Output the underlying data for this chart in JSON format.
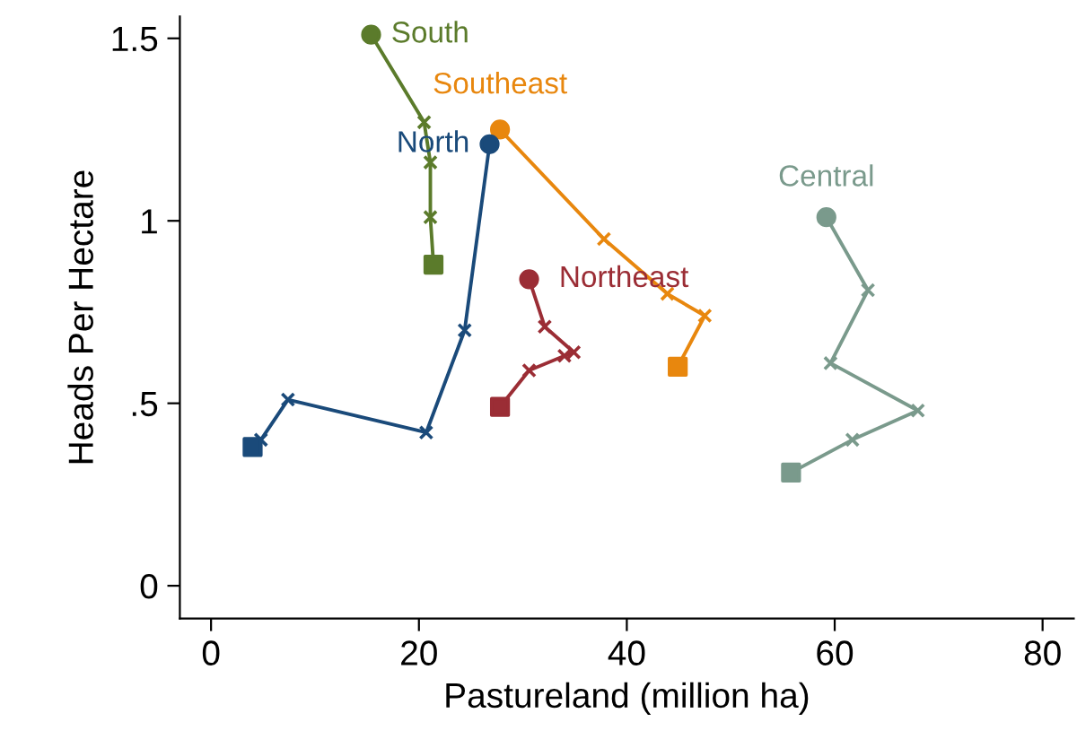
{
  "chart_data": {
    "type": "line",
    "xlabel": "Pastureland (million ha)",
    "ylabel": "Heads Per Hectare",
    "xlim": [
      -3,
      83
    ],
    "ylim": [
      -0.09,
      1.56
    ],
    "xticks": [
      0,
      20,
      40,
      60,
      80
    ],
    "yticks": [
      {
        "value": 0,
        "label": "0"
      },
      {
        "value": 0.5,
        "label": ".5"
      },
      {
        "value": 1,
        "label": "1"
      },
      {
        "value": 1.5,
        "label": "1.5"
      }
    ],
    "grid": false,
    "legend": false,
    "series": [
      {
        "color": "#5b7b2b",
        "marker": "none",
        "x": [
          15.4,
          20.5,
          21.1,
          21.1,
          21.4
        ],
        "values": [
          1.51,
          1.27,
          1.16,
          1.01,
          0.88
        ]
      },
      {
        "type": "scatter",
        "color": "#5b7b2b",
        "marker": "cross",
        "x": [
          20.5,
          21.1,
          21.1
        ],
        "values": [
          1.27,
          1.16,
          1.01
        ]
      },
      {
        "type": "scatter",
        "color": "#5b7b2b",
        "marker": "circle",
        "x": [
          15.4
        ],
        "values": [
          1.51
        ]
      },
      {
        "type": "scatter",
        "color": "#5b7b2b",
        "marker": "square",
        "x": [
          21.4
        ],
        "values": [
          0.88
        ]
      },
      {
        "color": "#e8870e",
        "marker": "none",
        "x": [
          27.8,
          37.8,
          43.9,
          47.5,
          44.9
        ],
        "values": [
          1.25,
          0.95,
          0.8,
          0.74,
          0.6
        ]
      },
      {
        "type": "scatter",
        "color": "#e8870e",
        "marker": "cross",
        "x": [
          37.8,
          43.9,
          47.5
        ],
        "values": [
          0.95,
          0.8,
          0.74
        ]
      },
      {
        "type": "scatter",
        "color": "#e8870e",
        "marker": "circle",
        "x": [
          27.8
        ],
        "values": [
          1.25
        ]
      },
      {
        "type": "scatter",
        "color": "#e8870e",
        "marker": "square",
        "x": [
          44.9
        ],
        "values": [
          0.6
        ]
      },
      {
        "color": "#1a4a7a",
        "marker": "none",
        "x": [
          26.8,
          24.4,
          20.7,
          7.4,
          4.8,
          4.0
        ],
        "values": [
          1.21,
          0.7,
          0.42,
          0.51,
          0.4,
          0.38
        ]
      },
      {
        "type": "scatter",
        "color": "#1a4a7a",
        "marker": "cross",
        "x": [
          24.4,
          20.7,
          7.4,
          4.8
        ],
        "values": [
          0.7,
          0.42,
          0.51,
          0.4
        ]
      },
      {
        "type": "scatter",
        "color": "#1a4a7a",
        "marker": "circle",
        "x": [
          26.8
        ],
        "values": [
          1.21
        ]
      },
      {
        "type": "scatter",
        "color": "#1a4a7a",
        "marker": "square",
        "x": [
          4.0
        ],
        "values": [
          0.38
        ]
      },
      {
        "color": "#9b2d35",
        "marker": "none",
        "x": [
          30.6,
          32.1,
          34.9,
          34.0,
          30.6,
          27.8
        ],
        "values": [
          0.84,
          0.71,
          0.64,
          0.63,
          0.59,
          0.49
        ]
      },
      {
        "type": "scatter",
        "color": "#9b2d35",
        "marker": "cross",
        "x": [
          32.1,
          34.9,
          34.0,
          30.6
        ],
        "values": [
          0.71,
          0.64,
          0.63,
          0.59
        ]
      },
      {
        "type": "scatter",
        "color": "#9b2d35",
        "marker": "circle",
        "x": [
          30.6
        ],
        "values": [
          0.84
        ]
      },
      {
        "type": "scatter",
        "color": "#9b2d35",
        "marker": "square",
        "x": [
          27.8
        ],
        "values": [
          0.49
        ]
      },
      {
        "color": "#7a9a8c",
        "marker": "none",
        "x": [
          59.2,
          63.2,
          59.6,
          68.0,
          61.7,
          55.8
        ],
        "values": [
          1.01,
          0.81,
          0.61,
          0.48,
          0.4,
          0.31
        ]
      },
      {
        "type": "scatter",
        "color": "#7a9a8c",
        "marker": "cross",
        "x": [
          63.2,
          59.6,
          68.0,
          61.7
        ],
        "values": [
          0.81,
          0.61,
          0.48,
          0.4
        ]
      },
      {
        "type": "scatter",
        "color": "#7a9a8c",
        "marker": "circle",
        "x": [
          59.2
        ],
        "values": [
          1.01
        ]
      },
      {
        "type": "scatter",
        "color": "#7a9a8c",
        "marker": "square",
        "x": [
          55.8
        ],
        "values": [
          0.31
        ]
      }
    ],
    "annotations": [
      {
        "text": "South",
        "x": 15.4,
        "y": 1.51
      },
      {
        "text": "Southeast",
        "x": 27.8,
        "y": 1.25
      },
      {
        "text": "North",
        "x": 26.8,
        "y": 1.21
      },
      {
        "text": "Northeast",
        "x": 30.6,
        "y": 0.84
      },
      {
        "text": "Central",
        "x": 59.2,
        "y": 1.01
      }
    ]
  }
}
